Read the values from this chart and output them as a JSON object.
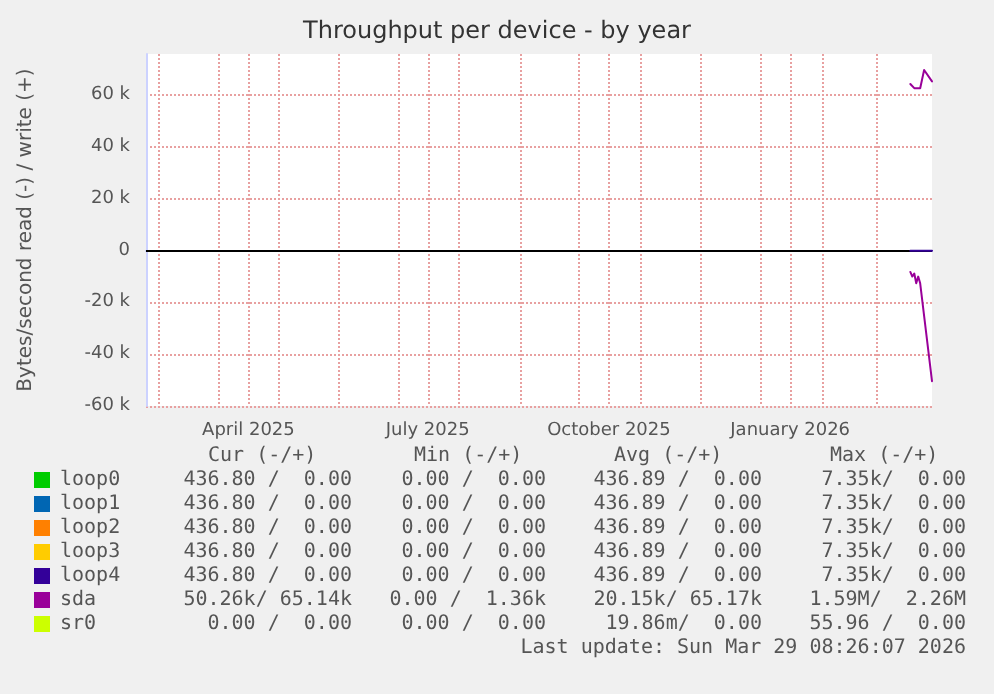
{
  "chart_data": {
    "type": "line",
    "title": "Throughput per device - by year",
    "ylabel": "Bytes/second read (-) / write (+)",
    "xlim": [
      "2025-02-23",
      "2026-03-29"
    ],
    "ylim": [
      -60000,
      76000
    ],
    "xticks": [
      {
        "value": "2025-03-01",
        "label": null
      },
      {
        "value": "2025-04-01",
        "label": null
      },
      {
        "value": "2025-04-16",
        "label": "April 2025"
      },
      {
        "value": "2025-05-01",
        "label": null
      },
      {
        "value": "2025-06-01",
        "label": null
      },
      {
        "value": "2025-07-01",
        "label": null
      },
      {
        "value": "2025-07-16",
        "label": "July 2025"
      },
      {
        "value": "2025-08-01",
        "label": null
      },
      {
        "value": "2025-09-01",
        "label": null
      },
      {
        "value": "2025-10-01",
        "label": null
      },
      {
        "value": "2025-10-16",
        "label": "October 2025"
      },
      {
        "value": "2025-11-01",
        "label": null
      },
      {
        "value": "2025-12-01",
        "label": null
      },
      {
        "value": "2026-01-01",
        "label": null
      },
      {
        "value": "2026-01-16",
        "label": "January 2026"
      },
      {
        "value": "2026-02-01",
        "label": null
      },
      {
        "value": "2026-03-01",
        "label": null
      }
    ],
    "yticks": [
      {
        "value": -60000,
        "label": "-60 k"
      },
      {
        "value": -40000,
        "label": "-40 k"
      },
      {
        "value": -20000,
        "label": "-20 k"
      },
      0,
      {
        "value": 20000,
        "label": "20 k"
      },
      {
        "value": 40000,
        "label": "40 k"
      },
      {
        "value": 60000,
        "label": "60 k"
      }
    ],
    "grid": true,
    "legend": "bottom left",
    "marker": "none",
    "line_style": "solid",
    "ref_lines": [
      {
        "axis": "y",
        "value": 0,
        "color": "#000000"
      }
    ],
    "series": [
      {
        "name": "loop0",
        "color": "#00cc00"
      },
      {
        "name": "loop1",
        "color": "#0066b3"
      },
      {
        "name": "loop2",
        "color": "#ff8000"
      },
      {
        "name": "loop3",
        "color": "#ffcc00"
      },
      {
        "name": "loop4",
        "color": "#330099",
        "x": [
          "2026-03-18",
          "2026-03-29"
        ],
        "values": [
          0,
          0
        ]
      },
      {
        "name": "sda",
        "color": "#990099",
        "x": [
          "2026-03-18",
          "2026-03-19",
          "2026-03-20",
          "2026-03-21",
          "2026-03-22",
          "2026-03-23",
          "2026-03-29"
        ],
        "values": [
          -8200,
          -10000,
          -8800,
          -12600,
          -10000,
          -12600,
          -50400
        ]
      },
      {
        "color": "#990099",
        "x": [
          "2026-03-18",
          "2026-03-20",
          "2026-03-23",
          "2026-03-25",
          "2026-03-29"
        ],
        "values": [
          64400,
          62800,
          62800,
          69800,
          65400
        ]
      },
      {
        "name": "sr0",
        "color": "#ccff00"
      }
    ],
    "annotations": [
      "Cur (-/+)",
      "Min (-/+)",
      "Avg (-/+)",
      "Max (-/+)",
      "436.80 /  0.00",
      "0.00 /  0.00",
      "436.89 /  0.00",
      "7.35k/  0.00",
      "436.80 /  0.00",
      "0.00 /  0.00",
      "436.89 /  0.00",
      "7.35k/  0.00",
      "436.80 /  0.00",
      "0.00 /  0.00",
      "436.89 /  0.00",
      "7.35k/  0.00",
      "436.80 /  0.00",
      "0.00 /  0.00",
      "436.89 /  0.00",
      "7.35k/  0.00",
      "436.80 /  0.00",
      "0.00 /  0.00",
      "436.89 /  0.00",
      "7.35k/  0.00",
      "50.26k/ 65.14k",
      "0.00 /  1.36k",
      "20.15k/ 65.17k",
      "1.59M/  2.26M",
      "0.00 /  0.00",
      "0.00 /  0.00",
      "19.86m/  0.00",
      "55.96 /  0.00",
      "Last update: Sun Mar 29 08:26:07 2026"
    ]
  }
}
